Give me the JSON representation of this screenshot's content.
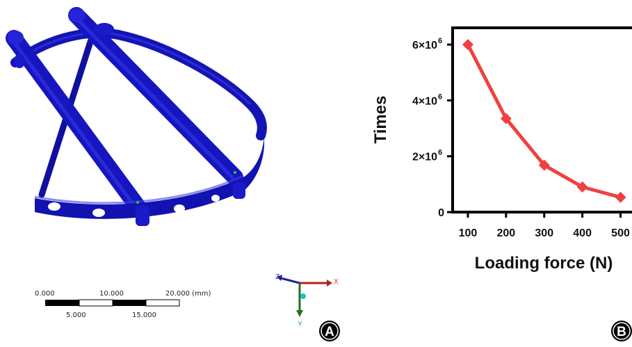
{
  "panel_a": {
    "label": "A",
    "scale_bar": {
      "top_labels": [
        "0.000",
        "10.000",
        "20.000 (mm)"
      ],
      "bottom_labels": [
        "5.000",
        "15.000"
      ]
    },
    "triad": {
      "x": "X",
      "y": "Y",
      "z": "Z"
    },
    "model_color": "#1414b4"
  },
  "panel_b": {
    "label": "B",
    "chart_data": {
      "type": "line",
      "title": "",
      "xlabel": "Loading force (N)",
      "ylabel": "Times",
      "categories": [
        "100",
        "200",
        "300",
        "400",
        "500"
      ],
      "x": [
        100,
        200,
        300,
        400,
        500
      ],
      "series": [
        {
          "values": [
            6000000,
            3350000,
            1680000,
            900000,
            530000
          ],
          "color": "#f04040",
          "marker": "diamond"
        }
      ],
      "y_ticks": [
        {
          "value": 0,
          "label": "0"
        },
        {
          "value": 2000000,
          "label": "2×10",
          "exp": "6"
        },
        {
          "value": 4000000,
          "label": "4×10",
          "exp": "6"
        },
        {
          "value": 6000000,
          "label": "6×10",
          "exp": "6"
        }
      ],
      "ylim": [
        0,
        6600000
      ],
      "xlim": [
        60,
        530
      ],
      "grid": false,
      "legend": "none"
    }
  }
}
